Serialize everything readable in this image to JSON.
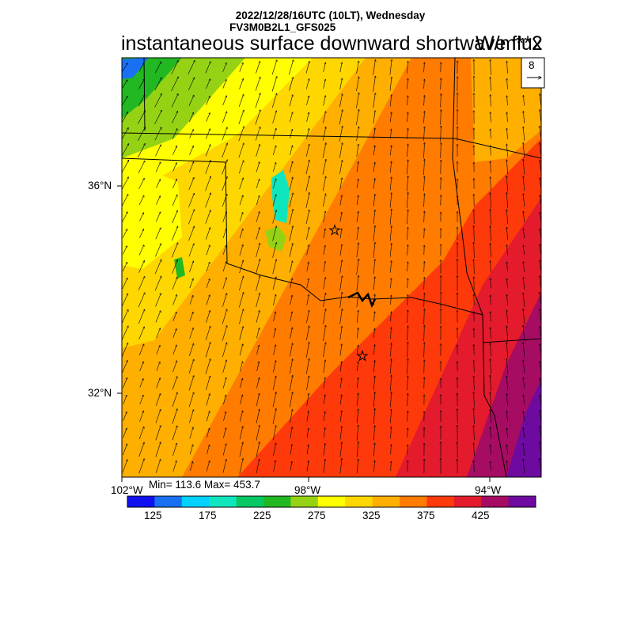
{
  "header": {
    "datetime": "2022/12/28/16UTC (10LT), Wednesday",
    "model": "FV3M0B2L1_GFS025",
    "field": "instantaneous surface downward shortwave flux",
    "units": "W/m**2"
  },
  "vector_legend": {
    "value": "8"
  },
  "axes": {
    "lat_labels": [
      "36°N",
      "32°N"
    ],
    "lon_labels": [
      "102°W",
      "98°W",
      "94°W"
    ]
  },
  "stats": {
    "min_max": "Min= 113.6 Max= 453.7"
  },
  "colorbar": {
    "colors": [
      "#1010f0",
      "#1a70f5",
      "#00d2ff",
      "#10e6be",
      "#08c864",
      "#22b822",
      "#96d214",
      "#ffff00",
      "#ffd700",
      "#ffaf00",
      "#ff7c00",
      "#ff3a0a",
      "#e31b2d",
      "#a60c62",
      "#6e0aa0"
    ],
    "tick_labels": [
      "125",
      "175",
      "225",
      "275",
      "325",
      "375",
      "425"
    ]
  },
  "markers": {
    "symbol": "star",
    "count": 2
  }
}
